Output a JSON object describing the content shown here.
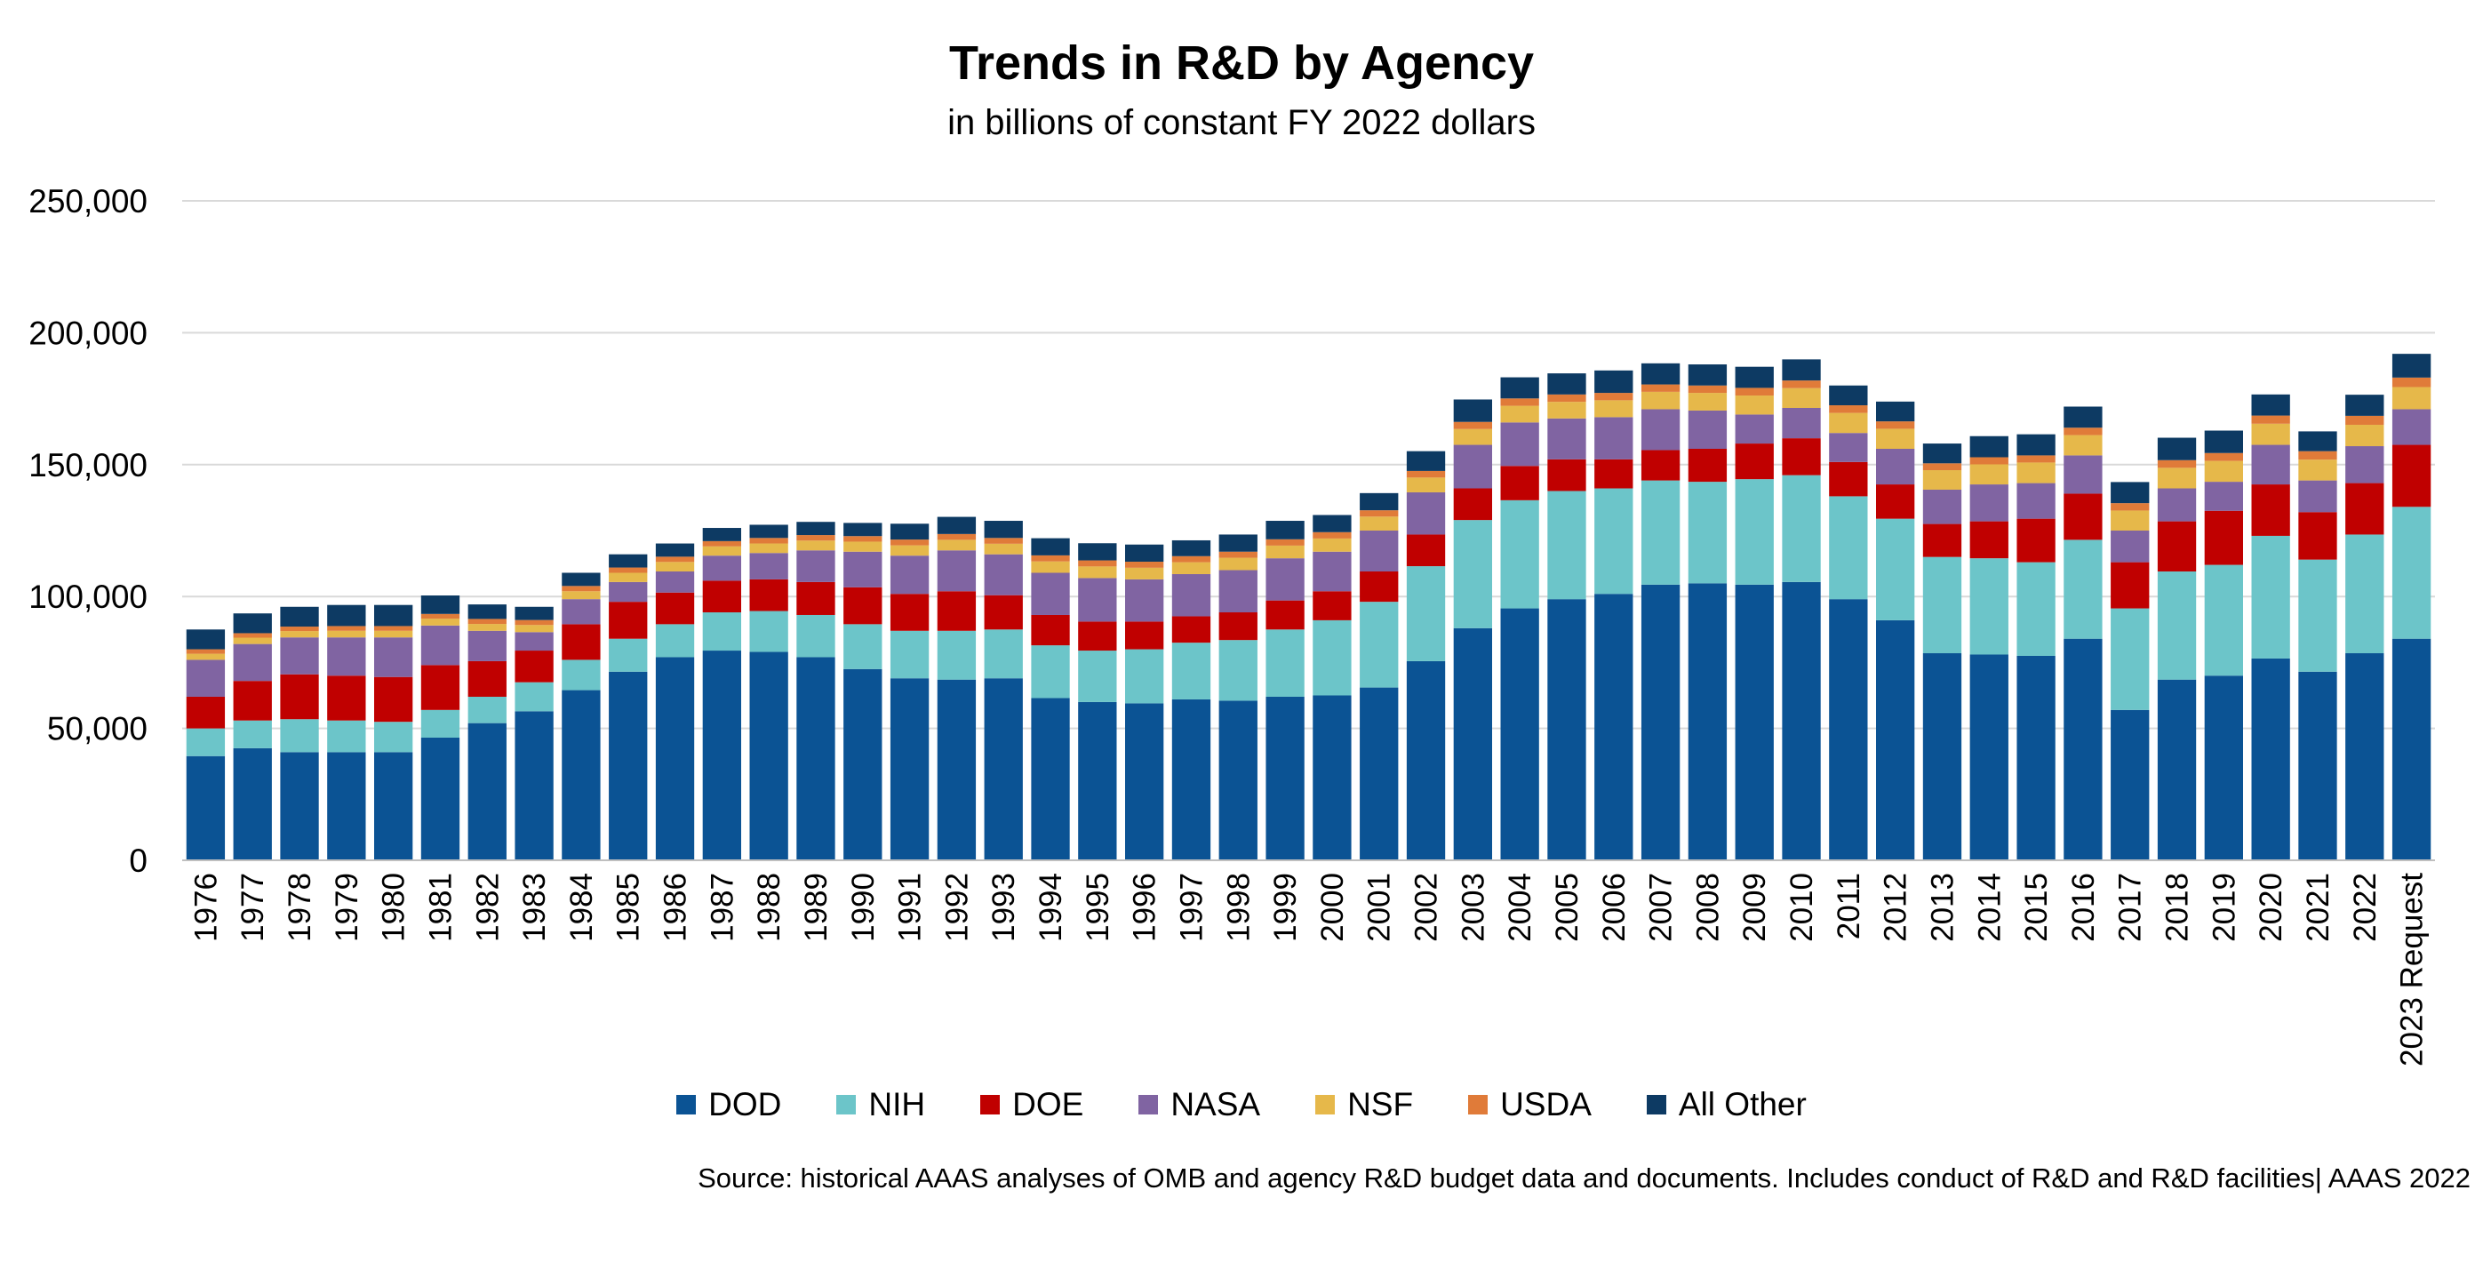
{
  "chart_data": {
    "type": "bar",
    "stacked": true,
    "title": "Trends in R&D by Agency",
    "subtitle": "in billions of constant FY 2022 dollars",
    "xlabel": "",
    "ylabel": "",
    "ylim": [
      0,
      250000
    ],
    "yticks": [
      "0",
      "50,000",
      "100,000",
      "150,000",
      "200,000",
      "250,000"
    ],
    "grid": true,
    "legend_position": "bottom",
    "categories": [
      "1976",
      "1977",
      "1978",
      "1979",
      "1980",
      "1981",
      "1982",
      "1983",
      "1984",
      "1985",
      "1986",
      "1987",
      "1988",
      "1989",
      "1990",
      "1991",
      "1992",
      "1993",
      "1994",
      "1995",
      "1996",
      "1997",
      "1998",
      "1999",
      "2000",
      "2001",
      "2002",
      "2003",
      "2004",
      "2005",
      "2006",
      "2007",
      "2008",
      "2009",
      "2010",
      "2011",
      "2012",
      "2013",
      "2014",
      "2015",
      "2016",
      "2017",
      "2018",
      "2019",
      "2020",
      "2021",
      "2022",
      "2023 Request"
    ],
    "series": [
      {
        "name": "DOD",
        "color": "#0b5394",
        "values": [
          39500,
          42500,
          41000,
          41000,
          41000,
          46500,
          52000,
          56500,
          64500,
          71500,
          77000,
          79500,
          79000,
          77000,
          72500,
          69000,
          68500,
          69000,
          61500,
          60000,
          59500,
          61000,
          60500,
          62000,
          62500,
          65500,
          75500,
          88000,
          95500,
          99000,
          101000,
          104500,
          105000,
          104500,
          105500,
          99000,
          91000,
          78500,
          78000,
          77500,
          84000,
          57000,
          68500,
          70000,
          76500,
          71500,
          78500,
          84000
        ]
      },
      {
        "name": "NIH",
        "color": "#6cc5c9",
        "values": [
          10500,
          10500,
          12500,
          12000,
          11500,
          10500,
          10000,
          11000,
          11500,
          12500,
          12500,
          14500,
          15500,
          16000,
          17000,
          18000,
          18500,
          18500,
          20000,
          19500,
          20500,
          21500,
          23000,
          25500,
          28500,
          32500,
          36000,
          41000,
          41000,
          41000,
          40000,
          39500,
          38500,
          40000,
          40500,
          39000,
          38500,
          36500,
          36500,
          35500,
          37500,
          38500,
          41000,
          42000,
          46500,
          42500,
          45000,
          50000
        ]
      },
      {
        "name": "DOE",
        "color": "#c00000",
        "values": [
          12000,
          15000,
          17000,
          17000,
          17000,
          17000,
          13500,
          12000,
          13500,
          14000,
          12000,
          12000,
          12000,
          12500,
          14000,
          14000,
          15000,
          13000,
          11500,
          11000,
          10500,
          10000,
          10500,
          11000,
          11000,
          11500,
          12000,
          12000,
          13000,
          12000,
          11000,
          11500,
          12500,
          13500,
          14000,
          13000,
          13000,
          12500,
          14000,
          16500,
          17500,
          17500,
          19000,
          20500,
          19500,
          18000,
          19500,
          23500
        ]
      },
      {
        "name": "NASA",
        "color": "#8064a2",
        "values": [
          14000,
          14000,
          14000,
          14500,
          15000,
          15000,
          11500,
          7000,
          9500,
          7500,
          8000,
          9500,
          10000,
          12000,
          13500,
          14500,
          15500,
          15500,
          16000,
          16500,
          16000,
          16000,
          16000,
          16000,
          15000,
          15500,
          16000,
          16500,
          16500,
          15500,
          16000,
          15500,
          14500,
          11000,
          11500,
          11000,
          13500,
          13000,
          14000,
          13500,
          14500,
          12000,
          12500,
          11000,
          15000,
          12000,
          14000,
          13500
        ]
      },
      {
        "name": "NSF",
        "color": "#e6b84a",
        "values": [
          2300,
          2400,
          2400,
          2500,
          2500,
          2600,
          2600,
          2700,
          3000,
          3500,
          3600,
          3500,
          3600,
          3700,
          3800,
          3900,
          4000,
          4000,
          4300,
          4400,
          4400,
          4500,
          4700,
          4800,
          5000,
          5300,
          5600,
          6000,
          6300,
          6300,
          6400,
          6600,
          6700,
          7200,
          7500,
          7600,
          7600,
          7400,
          7600,
          7800,
          7700,
          7600,
          7800,
          7900,
          8000,
          7900,
          8100,
          8400
        ]
      },
      {
        "name": "USDA",
        "color": "#e07b39",
        "values": [
          1700,
          1700,
          1700,
          1800,
          1800,
          1800,
          1900,
          1900,
          2000,
          2000,
          2000,
          2000,
          2100,
          2100,
          2100,
          2200,
          2200,
          2200,
          2300,
          2300,
          2300,
          2300,
          2300,
          2400,
          2400,
          2400,
          2500,
          2700,
          2800,
          2800,
          2800,
          2800,
          2800,
          2900,
          2900,
          2900,
          2800,
          2600,
          2700,
          2700,
          2800,
          2800,
          2900,
          3000,
          3100,
          3200,
          3400,
          3600
        ]
      },
      {
        "name": "All Other",
        "color": "#0d3a63",
        "values": [
          7500,
          7500,
          7500,
          8000,
          8000,
          7000,
          5500,
          5000,
          5000,
          5000,
          5000,
          5000,
          5000,
          5000,
          5000,
          6000,
          6500,
          6500,
          6500,
          6500,
          6500,
          6000,
          6500,
          7000,
          6500,
          6500,
          7500,
          8500,
          8000,
          8000,
          8500,
          8000,
          8000,
          8000,
          8000,
          7500,
          7500,
          7500,
          8000,
          8000,
          8000,
          8000,
          8500,
          8500,
          8000,
          7500,
          8000,
          9000
        ]
      }
    ]
  },
  "source_note": "Source: historical AAAS analyses of OMB and agency R&D budget data and documents. Includes conduct of R&D and R&D facilities| AAAS 2022"
}
